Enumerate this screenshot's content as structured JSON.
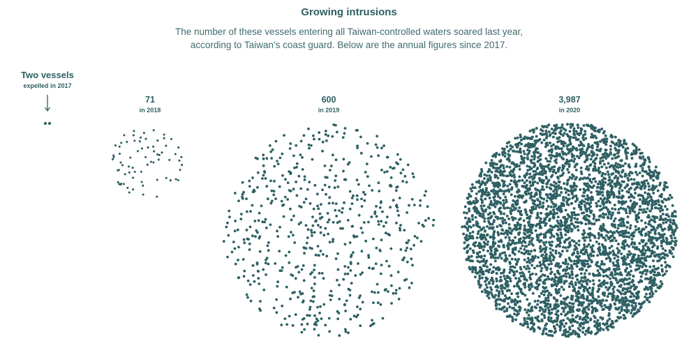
{
  "title": "Growing intrusions",
  "subtitle": "The number of these vessels entering all Taiwan-controlled waters soared last year, according to Taiwan’s coast guard. Below are the annual figures since 2017.",
  "colors": {
    "dot": "#2f6064",
    "text": "#2f6064"
  },
  "chart_data": {
    "type": "scatter",
    "encoding": "one dot per vessel, dots packed into a circle per year",
    "categories": [
      "2017",
      "2018",
      "2019",
      "2020"
    ],
    "values": [
      2,
      71,
      600,
      3987
    ],
    "labels": [
      {
        "value": "Two vessels",
        "caption": "expelled in 2017",
        "arrow": true
      },
      {
        "value": "71",
        "caption": "in 2018"
      },
      {
        "value": "600",
        "caption": "in 2019"
      },
      {
        "value": "3,987",
        "caption": "in 2020"
      }
    ]
  }
}
